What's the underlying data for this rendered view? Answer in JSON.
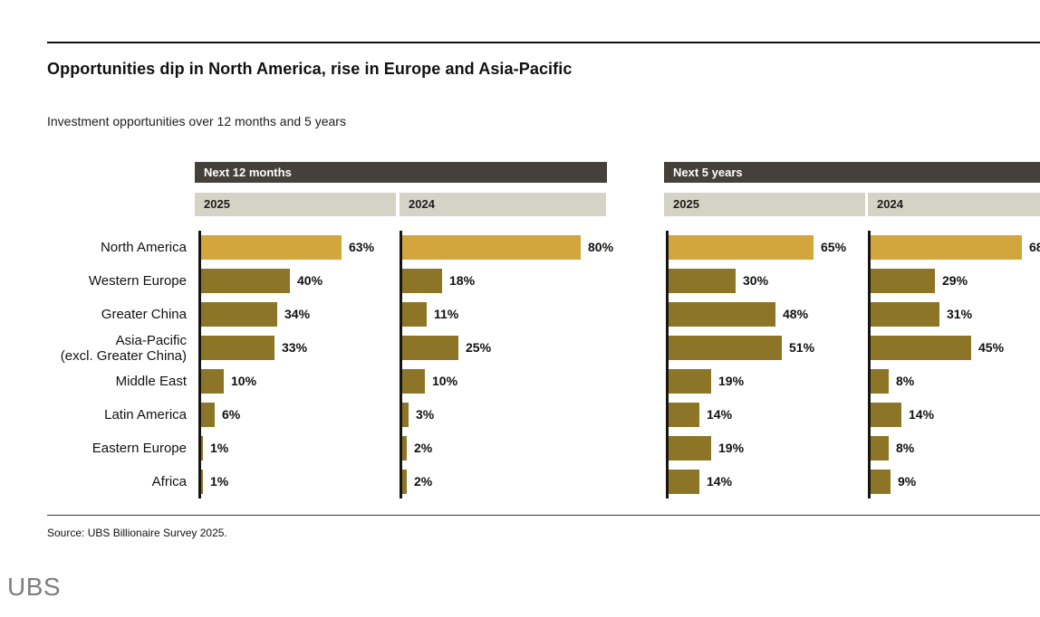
{
  "page": {
    "title": "Opportunities dip in North America, rise in Europe and Asia-Pacific",
    "subtitle": "Investment opportunities over 12 months and 5 years",
    "source": "Source: UBS Billionaire Survey 2025.",
    "logo_text": "UBS"
  },
  "chart_data": {
    "type": "bar",
    "orientation": "horizontal",
    "unit": "%",
    "value_range": [
      0,
      100
    ],
    "categories": [
      "North America",
      "Western Europe",
      "Greater China",
      "Asia-Pacific\n(excl. Greater China)",
      "Middle East",
      "Latin America",
      "Eastern Europe",
      "Africa"
    ],
    "groups": [
      {
        "label": "Next 12 months",
        "series": [
          {
            "label": "2025",
            "values": [
              63,
              40,
              34,
              33,
              10,
              6,
              1,
              1
            ]
          },
          {
            "label": "2024",
            "values": [
              80,
              18,
              11,
              25,
              10,
              3,
              2,
              2
            ]
          }
        ]
      },
      {
        "label": "Next 5 years",
        "series": [
          {
            "label": "2025",
            "values": [
              65,
              30,
              48,
              51,
              19,
              14,
              19,
              14
            ]
          },
          {
            "label": "2024",
            "values": [
              68,
              29,
              31,
              45,
              8,
              14,
              8,
              9
            ]
          }
        ]
      }
    ],
    "highlight_category": "North America",
    "colors": {
      "bar": "#8d7527",
      "highlight_bar": "#d2a63d",
      "group_header_bg": "#45413a",
      "year_header_bg": "#d5d3c5",
      "axis_line": "#17150f"
    },
    "legend": "none",
    "grid": "off"
  }
}
